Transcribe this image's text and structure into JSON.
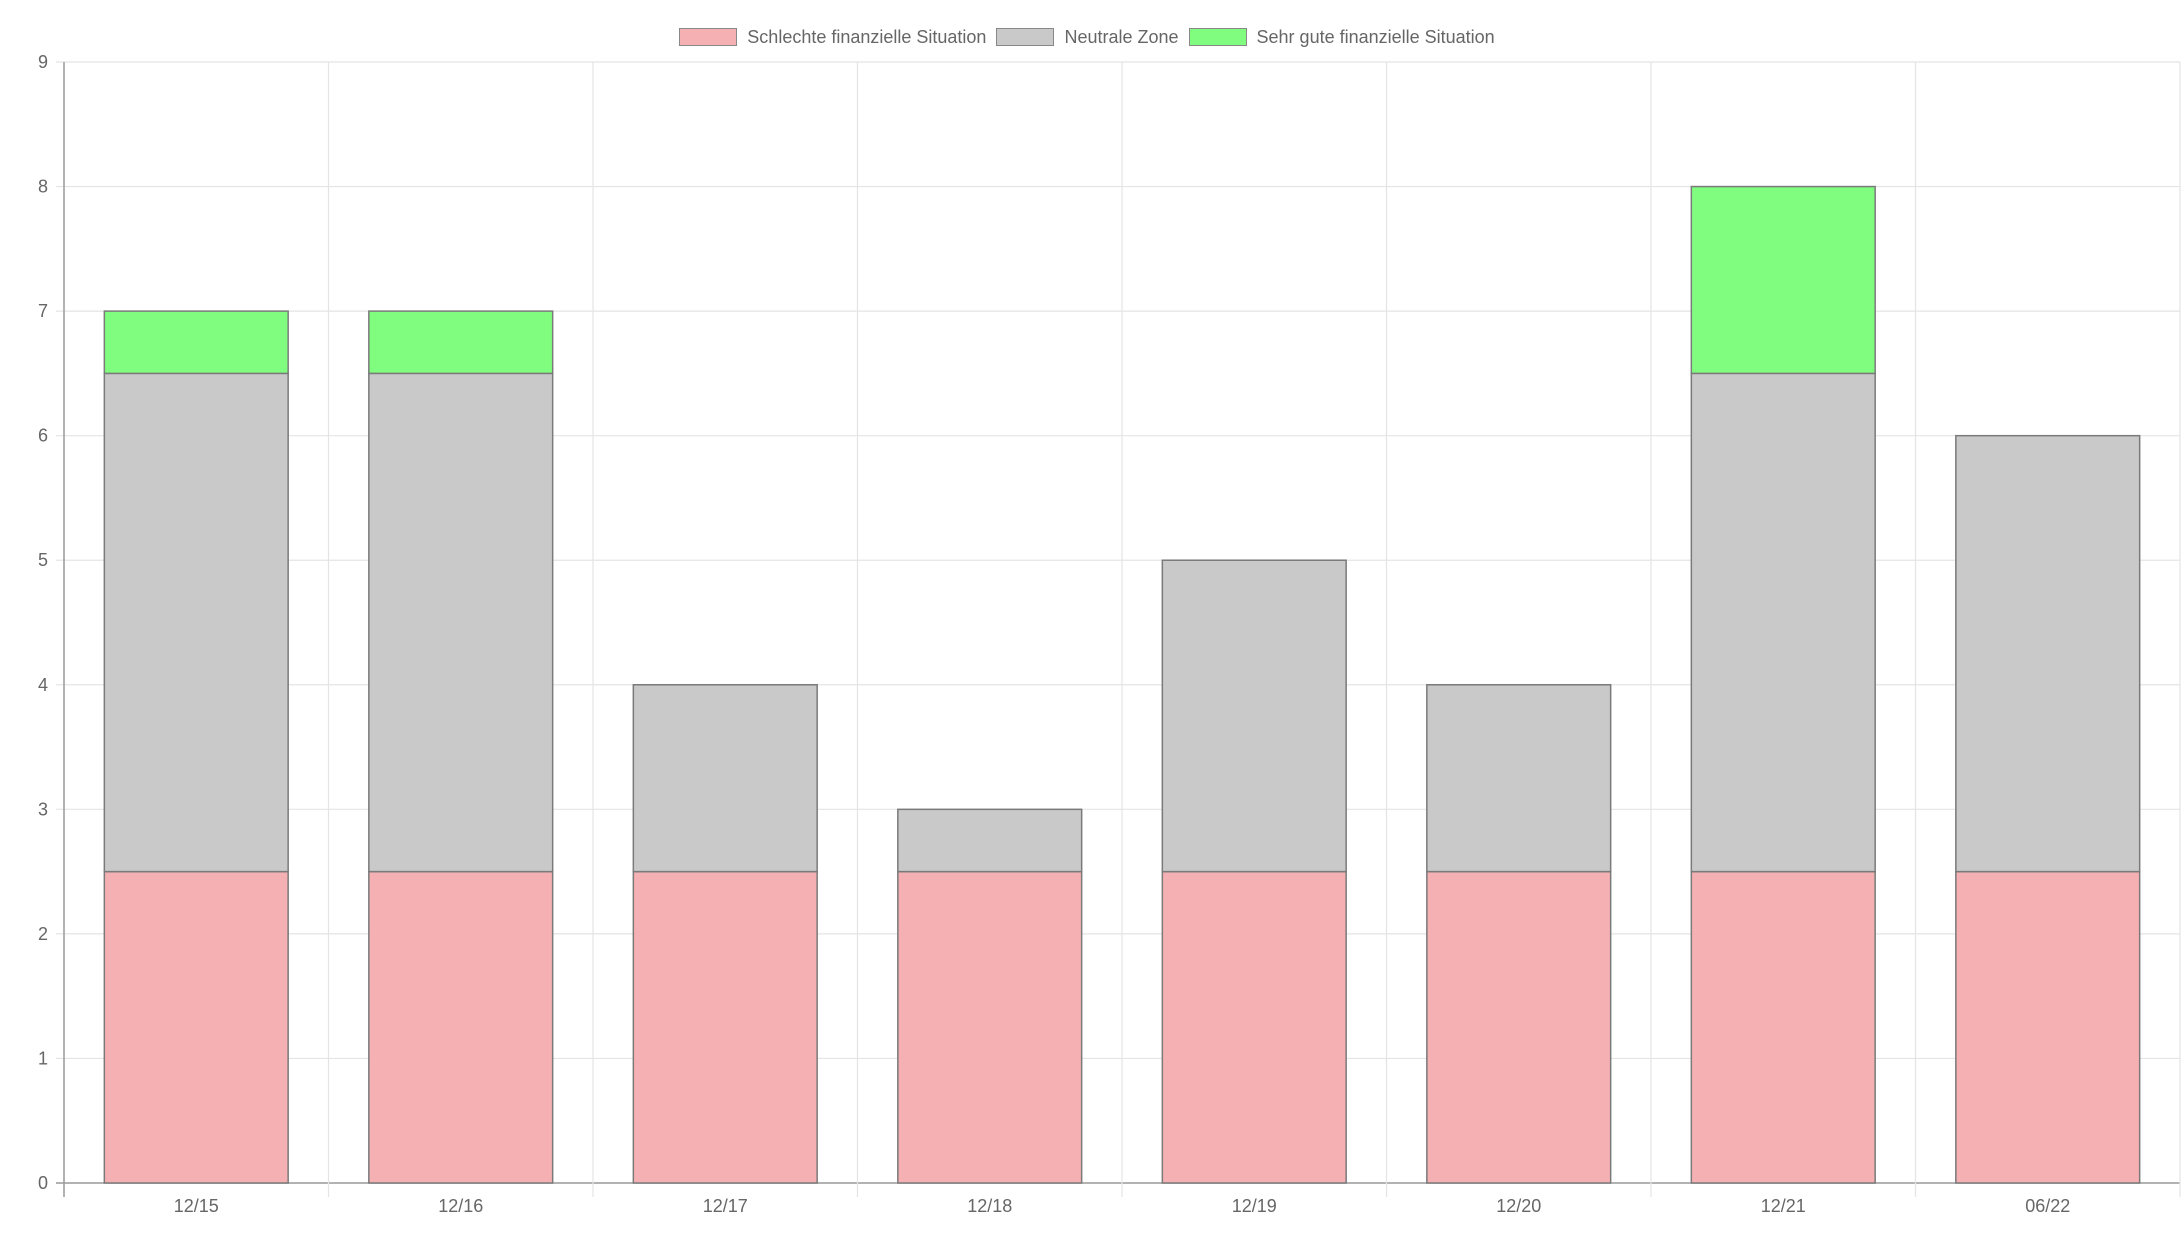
{
  "chart_data": {
    "type": "bar",
    "stacked": true,
    "title": "",
    "xlabel": "",
    "ylabel": "",
    "categories": [
      "12/15",
      "12/16",
      "12/17",
      "12/18",
      "12/19",
      "12/20",
      "12/21",
      "06/22"
    ],
    "yticks": [
      "0",
      "1",
      "2",
      "3",
      "4",
      "5",
      "6",
      "7",
      "8",
      "9"
    ],
    "ylim": [
      0,
      9
    ],
    "grid": true,
    "legend_position": "top-center",
    "series": [
      {
        "name": "Schlechte finanzielle Situation",
        "color": "#f4b0b2",
        "values": [
          2.5,
          2.5,
          2.5,
          2.5,
          2.5,
          2.5,
          2.5,
          2.5
        ]
      },
      {
        "name": "Neutrale Zone",
        "color": "#c9c9c9",
        "values": [
          4.0,
          4.0,
          1.5,
          0.5,
          2.5,
          1.5,
          4.0,
          3.5
        ]
      },
      {
        "name": "Sehr gute finanzielle Situation",
        "color": "#80fd7e",
        "values": [
          0.5,
          0.5,
          0,
          0,
          0,
          0,
          1.5,
          0
        ]
      }
    ]
  }
}
